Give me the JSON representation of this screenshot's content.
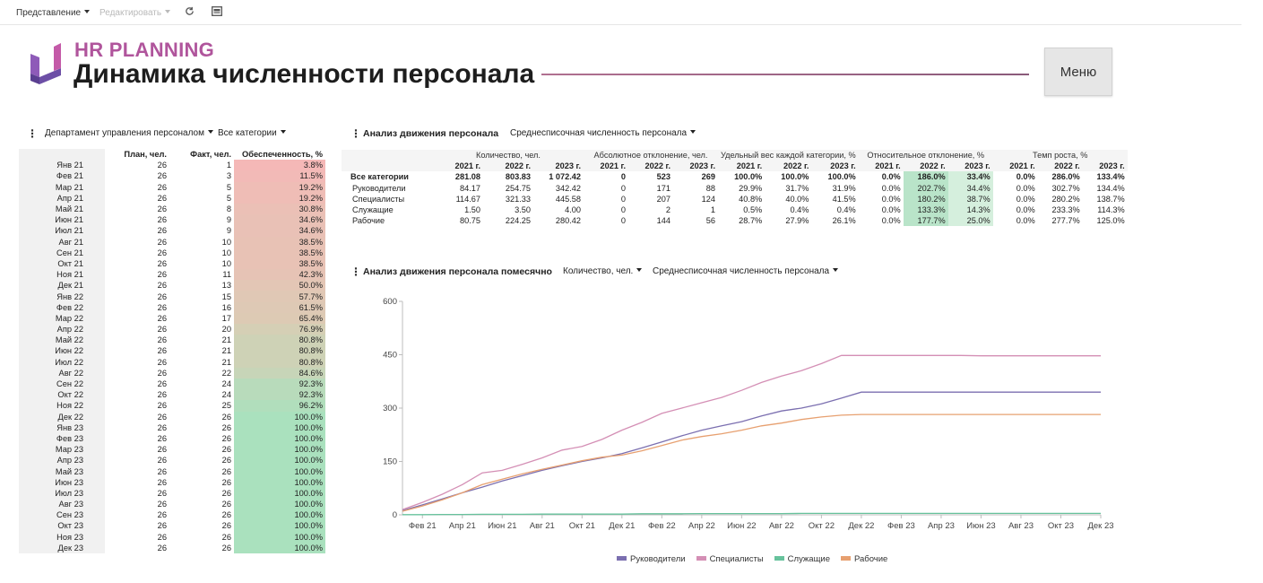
{
  "toolbar": {
    "view_label": "Представление",
    "edit_label": "Редактировать"
  },
  "header": {
    "app_title": "HR PLANNING",
    "page_title": "Динамика численности персонала",
    "menu_label": "Меню"
  },
  "left_panel": {
    "filter_department": "Департамент управления персоналом",
    "filter_category": "Все категории",
    "columns": [
      "План, чел.",
      "Факт, чел.",
      "Обеспеченность, %"
    ],
    "rows": [
      [
        "Янв 21",
        "26",
        "1",
        "3.8%"
      ],
      [
        "Фев 21",
        "26",
        "3",
        "11.5%"
      ],
      [
        "Мар 21",
        "26",
        "5",
        "19.2%"
      ],
      [
        "Апр 21",
        "26",
        "5",
        "19.2%"
      ],
      [
        "Май 21",
        "26",
        "8",
        "30.8%"
      ],
      [
        "Июн 21",
        "26",
        "9",
        "34.6%"
      ],
      [
        "Июл 21",
        "26",
        "9",
        "34.6%"
      ],
      [
        "Авг 21",
        "26",
        "10",
        "38.5%"
      ],
      [
        "Сен 21",
        "26",
        "10",
        "38.5%"
      ],
      [
        "Окт 21",
        "26",
        "10",
        "38.5%"
      ],
      [
        "Ноя 21",
        "26",
        "11",
        "42.3%"
      ],
      [
        "Дек 21",
        "26",
        "13",
        "50.0%"
      ],
      [
        "Янв 22",
        "26",
        "15",
        "57.7%"
      ],
      [
        "Фев 22",
        "26",
        "16",
        "61.5%"
      ],
      [
        "Мар 22",
        "26",
        "17",
        "65.4%"
      ],
      [
        "Апр 22",
        "26",
        "20",
        "76.9%"
      ],
      [
        "Май 22",
        "26",
        "21",
        "80.8%"
      ],
      [
        "Июн 22",
        "26",
        "21",
        "80.8%"
      ],
      [
        "Июл 22",
        "26",
        "21",
        "80.8%"
      ],
      [
        "Авг 22",
        "26",
        "22",
        "84.6%"
      ],
      [
        "Сен 22",
        "26",
        "24",
        "92.3%"
      ],
      [
        "Окт 22",
        "26",
        "24",
        "92.3%"
      ],
      [
        "Ноя 22",
        "26",
        "25",
        "96.2%"
      ],
      [
        "Дек 22",
        "26",
        "26",
        "100.0%"
      ],
      [
        "Янв 23",
        "26",
        "26",
        "100.0%"
      ],
      [
        "Фев 23",
        "26",
        "26",
        "100.0%"
      ],
      [
        "Мар 23",
        "26",
        "26",
        "100.0%"
      ],
      [
        "Апр 23",
        "26",
        "26",
        "100.0%"
      ],
      [
        "Май 23",
        "26",
        "26",
        "100.0%"
      ],
      [
        "Июн 23",
        "26",
        "26",
        "100.0%"
      ],
      [
        "Июл 23",
        "26",
        "26",
        "100.0%"
      ],
      [
        "Авг 23",
        "26",
        "26",
        "100.0%"
      ],
      [
        "Сен 23",
        "26",
        "26",
        "100.0%"
      ],
      [
        "Окт 23",
        "26",
        "26",
        "100.0%"
      ],
      [
        "Ноя 23",
        "26",
        "26",
        "100.0%"
      ],
      [
        "Дек 23",
        "26",
        "26",
        "100.0%"
      ]
    ]
  },
  "movement": {
    "title": "Анализ движения персонала",
    "filter": "Среднесписочная численность персонала",
    "groups": [
      "Количество, чел.",
      "Абсолютное отклонение, чел.",
      "Удельный вес каждой категории, %",
      "Относительное отклонение, %",
      "Темп роста, %"
    ],
    "years": [
      "2021 г.",
      "2022 г.",
      "2023 г."
    ],
    "rows": [
      {
        "cat": "Все категории",
        "v": [
          "281.08",
          "803.83",
          "1 072.42",
          "0",
          "523",
          "269",
          "100.0%",
          "100.0%",
          "100.0%",
          "0.0%",
          "186.0%",
          "33.4%",
          "0.0%",
          "286.0%",
          "133.4%"
        ]
      },
      {
        "cat": "Руководители",
        "v": [
          "84.17",
          "254.75",
          "342.42",
          "0",
          "171",
          "88",
          "29.9%",
          "31.7%",
          "31.9%",
          "0.0%",
          "202.7%",
          "34.4%",
          "0.0%",
          "302.7%",
          "134.4%"
        ]
      },
      {
        "cat": "Специалисты",
        "v": [
          "114.67",
          "321.33",
          "445.58",
          "0",
          "207",
          "124",
          "40.8%",
          "40.0%",
          "41.5%",
          "0.0%",
          "180.2%",
          "38.7%",
          "0.0%",
          "280.2%",
          "138.7%"
        ]
      },
      {
        "cat": "Служащие",
        "v": [
          "1.50",
          "3.50",
          "4.00",
          "0",
          "2",
          "1",
          "0.5%",
          "0.4%",
          "0.4%",
          "0.0%",
          "133.3%",
          "14.3%",
          "0.0%",
          "233.3%",
          "114.3%"
        ]
      },
      {
        "cat": "Рабочие",
        "v": [
          "80.75",
          "224.25",
          "280.42",
          "0",
          "144",
          "56",
          "28.7%",
          "27.9%",
          "26.1%",
          "0.0%",
          "177.7%",
          "25.0%",
          "0.0%",
          "277.7%",
          "125.0%"
        ]
      }
    ]
  },
  "monthly": {
    "title": "Анализ движения персонала помесячно",
    "filter_measure": "Количество, чел.",
    "filter_metric": "Среднесписочная численность персонала"
  },
  "chart_data": {
    "type": "line",
    "x": [
      "Янв 21",
      "Фев 21",
      "Мар 21",
      "Апр 21",
      "Май 21",
      "Июн 21",
      "Июл 21",
      "Авг 21",
      "Сен 21",
      "Окт 21",
      "Ноя 21",
      "Дек 21",
      "Янв 22",
      "Фев 22",
      "Мар 22",
      "Апр 22",
      "Май 22",
      "Июн 22",
      "Июл 22",
      "Авг 22",
      "Сен 22",
      "Окт 22",
      "Ноя 22",
      "Дек 22",
      "Янв 23",
      "Фев 23",
      "Мар 23",
      "Апр 23",
      "Май 23",
      "Июн 23",
      "Июл 23",
      "Авг 23",
      "Сен 23",
      "Окт 23",
      "Ноя 23",
      "Дек 23"
    ],
    "x_tick_labels": [
      "Фев 21",
      "Апр 21",
      "Июн 21",
      "Авг 21",
      "Окт 21",
      "Дек 21",
      "Фев 22",
      "Апр 22",
      "Июн 22",
      "Авг 22",
      "Окт 22",
      "Дек 22",
      "Фев 23",
      "Апр 23",
      "Июн 23",
      "Авг 23",
      "Окт 23",
      "Дек 23"
    ],
    "y_ticks": [
      "0",
      "150",
      "300",
      "450",
      "600"
    ],
    "ylim": [
      0,
      600
    ],
    "series": [
      {
        "name": "Руководители",
        "color": "#7b6fb0",
        "values": [
          12,
          28,
          45,
          62,
          78,
          95,
          110,
          125,
          138,
          150,
          160,
          172,
          188,
          205,
          222,
          238,
          250,
          262,
          278,
          292,
          300,
          312,
          328,
          345,
          345,
          345,
          345,
          345,
          345,
          345,
          345,
          345,
          345,
          345,
          345,
          345
        ]
      },
      {
        "name": "Специалисты",
        "color": "#d48fb5",
        "values": [
          15,
          35,
          58,
          85,
          118,
          125,
          142,
          160,
          182,
          192,
          212,
          238,
          260,
          285,
          300,
          315,
          330,
          350,
          372,
          390,
          405,
          425,
          448,
          448,
          448,
          448,
          448,
          448,
          448,
          447,
          447,
          447,
          447,
          447,
          447,
          447
        ]
      },
      {
        "name": "Служащие",
        "color": "#67c29c",
        "values": [
          0.5,
          0.5,
          1,
          1,
          1.5,
          1.5,
          1.5,
          2,
          2,
          2,
          2,
          2,
          3,
          3,
          3,
          3.5,
          3.5,
          3.5,
          3.5,
          3.5,
          4,
          4,
          4,
          4,
          4,
          4,
          4,
          4,
          4,
          4,
          4,
          4,
          4,
          4,
          4,
          4
        ]
      },
      {
        "name": "Рабочие",
        "color": "#e7a070",
        "values": [
          10,
          25,
          42,
          62,
          85,
          100,
          115,
          128,
          140,
          152,
          162,
          168,
          180,
          195,
          210,
          220,
          228,
          238,
          250,
          258,
          268,
          275,
          280,
          282,
          282,
          282,
          282,
          282,
          282,
          282,
          282,
          282,
          282,
          282,
          282,
          282
        ]
      }
    ]
  }
}
